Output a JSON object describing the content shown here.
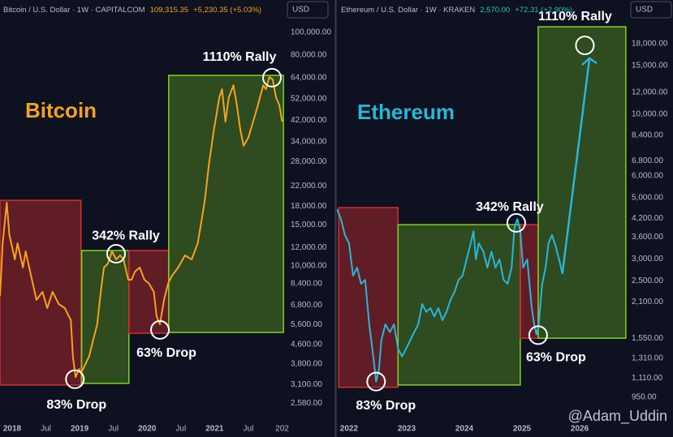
{
  "chart_data": [
    {
      "type": "line",
      "title": "Bitcoin",
      "symbol": "Bitcoin / U.S. Dollar · 1W · CAPITALCOM",
      "price": "109,315.35",
      "change": "+5,230.35 (+5.03%)",
      "price_color": "#f7a21b",
      "currency": "USD",
      "log_scale": true,
      "xlim": [
        2017.82,
        2022.03
      ],
      "ylim": [
        2154,
        137700
      ],
      "xticks": [
        2018,
        {
          "value": 2018.5,
          "label": "Jul"
        },
        2019,
        {
          "value": 2019.5,
          "label": "Jul"
        },
        2020,
        {
          "value": 2020.5,
          "label": "Jul"
        },
        2021,
        {
          "value": 2021.5,
          "label": "Jul"
        },
        {
          "value": 2022,
          "label": "202"
        }
      ],
      "yticks": [
        {
          "value": 100000,
          "label": "100,000.00"
        },
        {
          "value": 80000,
          "label": "80,000.00"
        },
        {
          "value": 64000,
          "label": "64,000.00"
        },
        {
          "value": 52000,
          "label": "52,000.00"
        },
        {
          "value": 42000,
          "label": "42,000.00"
        },
        {
          "value": 34000,
          "label": "34,000.00"
        },
        {
          "value": 28000,
          "label": "28,000.00"
        },
        {
          "value": 22000,
          "label": "22,000.00"
        },
        {
          "value": 18000,
          "label": "18,000.00"
        },
        {
          "value": 15000,
          "label": "15,000.00"
        },
        {
          "value": 12000,
          "label": "12,000.00"
        },
        {
          "value": 10000,
          "label": "10,000.00"
        },
        {
          "value": 8400,
          "label": "8,400.00"
        },
        {
          "value": 6800,
          "label": "6,800.00"
        },
        {
          "value": 5600,
          "label": "5,600.00"
        },
        {
          "value": 4600,
          "label": "4,600.00"
        },
        {
          "value": 3800,
          "label": "3,800.00"
        },
        {
          "value": 3100,
          "label": "3,100.00"
        },
        {
          "value": 2580,
          "label": "2,580.00"
        }
      ],
      "regions": [
        {
          "x": [
            2017.82,
            2019.02
          ],
          "y": [
            3090,
            19100
          ],
          "color": "#d32f2f"
        },
        {
          "x": [
            2019.03,
            2019.73
          ],
          "y": [
            3140,
            11640
          ],
          "color": "#7ed321"
        },
        {
          "x": [
            2019.73,
            2020.32
          ],
          "y": [
            5150,
            11640
          ],
          "color": "#d32f2f"
        },
        {
          "x": [
            2020.32,
            2022.02
          ],
          "y": [
            5190,
            65500
          ],
          "color": "#7ed321"
        }
      ],
      "x": [
        2017.82,
        2017.86,
        2017.92,
        2017.96,
        2018.04,
        2018.08,
        2018.16,
        2018.2,
        2018.28,
        2018.36,
        2018.45,
        2018.52,
        2018.6,
        2018.69,
        2018.78,
        2018.87,
        2018.9,
        2018.94,
        2018.99,
        2019.02,
        2019.08,
        2019.14,
        2019.2,
        2019.26,
        2019.32,
        2019.36,
        2019.42,
        2019.48,
        2019.54,
        2019.6,
        2019.65,
        2019.72,
        2019.77,
        2019.82,
        2019.89,
        2019.96,
        2020.03,
        2020.1,
        2020.14,
        2020.19,
        2020.25,
        2020.31,
        2020.37,
        2020.46,
        2020.56,
        2020.66,
        2020.75,
        2020.85,
        2020.92,
        2020.99,
        2021.07,
        2021.11,
        2021.16,
        2021.21,
        2021.28,
        2021.33,
        2021.38,
        2021.43,
        2021.5,
        2021.57,
        2021.64,
        2021.72,
        2021.76,
        2021.81,
        2021.86,
        2021.91,
        2021.96,
        2022.0
      ],
      "series": [
        {
          "color": "#f7a21b",
          "values": [
            7440,
            12510,
            18650,
            13560,
            10660,
            12510,
            9840,
            11550,
            9090,
            7150,
            7740,
            6600,
            7740,
            6870,
            6600,
            5850,
            4090,
            3340,
            3620,
            3480,
            3770,
            4090,
            4800,
            5620,
            8060,
            9840,
            10240,
            11550,
            10660,
            11090,
            10660,
            8730,
            8730,
            9460,
            9840,
            8730,
            8390,
            7740,
            6090,
            5620,
            7150,
            8390,
            9090,
            9840,
            11090,
            10660,
            12510,
            18650,
            27800,
            38300,
            52700,
            57100,
            41500,
            52700,
            59400,
            48700,
            38300,
            32700,
            35400,
            41500,
            48700,
            59400,
            57100,
            64400,
            62900,
            52700,
            48700,
            41500
          ]
        }
      ],
      "annotations": [
        {
          "text": "83% Drop",
          "x": 2018.93,
          "y": 3270
        },
        {
          "text": "342% Rally",
          "x": 2019.54,
          "y": 11270
        },
        {
          "text": "63% Drop",
          "x": 2020.19,
          "y": 5320
        },
        {
          "text": "1110% Rally",
          "x": 2021.85,
          "y": 64000
        }
      ]
    },
    {
      "type": "line",
      "title": "Ethereum",
      "symbol": "Ethereum / U.S. Dollar · 1W · KRAKEN",
      "price": "2,570.00",
      "change": "+72.31 (+2.90%)",
      "price_color": "#26c6b0",
      "currency": "USD",
      "log_scale": true,
      "xlim": [
        2021.79,
        2026.83
      ],
      "ylim": [
        774,
        25920
      ],
      "xticks": [
        2022,
        2023,
        2024,
        2025,
        2026
      ],
      "yticks": [
        {
          "value": 18000,
          "label": "18,000.00"
        },
        {
          "value": 15000,
          "label": "15,000.00"
        },
        {
          "value": 12000,
          "label": "12,000.00"
        },
        {
          "value": 10000,
          "label": "10,000.00"
        },
        {
          "value": 8400,
          "label": "8,400.00"
        },
        {
          "value": 6800,
          "label": "6,800.00"
        },
        {
          "value": 6000,
          "label": "6,000.00"
        },
        {
          "value": 5000,
          "label": "5,000.00"
        },
        {
          "value": 4200,
          "label": "4,200.00"
        },
        {
          "value": 3600,
          "label": "3,600.00"
        },
        {
          "value": 3000,
          "label": "3,000.00"
        },
        {
          "value": 2500,
          "label": "2,500.00"
        },
        {
          "value": 2100,
          "label": "2,100.00"
        },
        {
          "value": 1550,
          "label": "1,550.00"
        },
        {
          "value": 1310,
          "label": "1,310.00"
        },
        {
          "value": 1110,
          "label": "1,110.00"
        },
        {
          "value": 950,
          "label": "950.00"
        }
      ],
      "regions": [
        {
          "x": [
            2021.82,
            2022.85
          ],
          "y": [
            1030,
            4600
          ],
          "color": "#d32f2f"
        },
        {
          "x": [
            2022.85,
            2024.97
          ],
          "y": [
            1050,
            3990
          ],
          "color": "#7ed321"
        },
        {
          "x": [
            2024.97,
            2025.28
          ],
          "y": [
            1550,
            3990
          ],
          "color": "#d32f2f"
        },
        {
          "x": [
            2025.28,
            2026.8
          ],
          "y": [
            1550,
            20740
          ],
          "color": "#7ed321"
        }
      ],
      "x": [
        2021.79,
        2021.86,
        2021.93,
        2022.0,
        2022.07,
        2022.14,
        2022.21,
        2022.28,
        2022.35,
        2022.42,
        2022.47,
        2022.52,
        2022.56,
        2022.63,
        2022.71,
        2022.78,
        2022.85,
        2022.92,
        2022.99,
        2023.06,
        2023.13,
        2023.2,
        2023.27,
        2023.34,
        2023.41,
        2023.48,
        2023.55,
        2023.62,
        2023.69,
        2023.76,
        2023.83,
        2023.9,
        2023.97,
        2024.04,
        2024.11,
        2024.16,
        2024.2,
        2024.25,
        2024.33,
        2024.4,
        2024.47,
        2024.54,
        2024.61,
        2024.68,
        2024.75,
        2024.82,
        2024.87,
        2024.92,
        2024.97,
        2025.02,
        2025.09,
        2025.17,
        2025.21,
        2025.25,
        2025.29,
        2025.35,
        2025.41,
        2025.46,
        2025.52,
        2025.59,
        2025.66,
        2025.7,
        2026.17
      ],
      "series": [
        {
          "color": "#29b6d8",
          "values": [
            4540,
            4180,
            3660,
            3420,
            2610,
            2790,
            2440,
            2520,
            1740,
            1330,
            1080,
            1200,
            1520,
            1740,
            1630,
            1740,
            1420,
            1330,
            1420,
            1520,
            1630,
            1740,
            2060,
            1930,
            1990,
            1860,
            1990,
            1800,
            1930,
            2130,
            2280,
            2520,
            2610,
            2990,
            3420,
            3780,
            2990,
            3420,
            3190,
            2790,
            3190,
            2790,
            2990,
            2520,
            2440,
            2790,
            3910,
            4180,
            3780,
            2790,
            2990,
            1990,
            1740,
            1600,
            1740,
            2440,
            2790,
            3420,
            3660,
            3300,
            2890,
            2650,
            null
          ]
        },
        {
          "color": "#29b6d8",
          "values": [
            null,
            null,
            null,
            null,
            null,
            null,
            null,
            null,
            null,
            null,
            null,
            null,
            null,
            null,
            null,
            null,
            null,
            null,
            null,
            null,
            null,
            null,
            null,
            null,
            null,
            null,
            null,
            null,
            null,
            null,
            null,
            null,
            null,
            null,
            null,
            null,
            null,
            null,
            null,
            null,
            null,
            null,
            null,
            null,
            null,
            null,
            null,
            null,
            null,
            null,
            null,
            null,
            null,
            null,
            null,
            null,
            null,
            null,
            null,
            null,
            null,
            2650,
            15940
          ]
        }
      ],
      "annotations": [
        {
          "text": "83% Drop",
          "x": 2022.47,
          "y": 1080
        },
        {
          "text": "342% Rally",
          "x": 2024.9,
          "y": 4050
        },
        {
          "text": "63% Drop",
          "x": 2025.28,
          "y": 1590
        },
        {
          "text": "1110% Rally",
          "x": 2026.09,
          "y": 17760
        }
      ]
    }
  ],
  "watermark": "@Adam_Uddin"
}
